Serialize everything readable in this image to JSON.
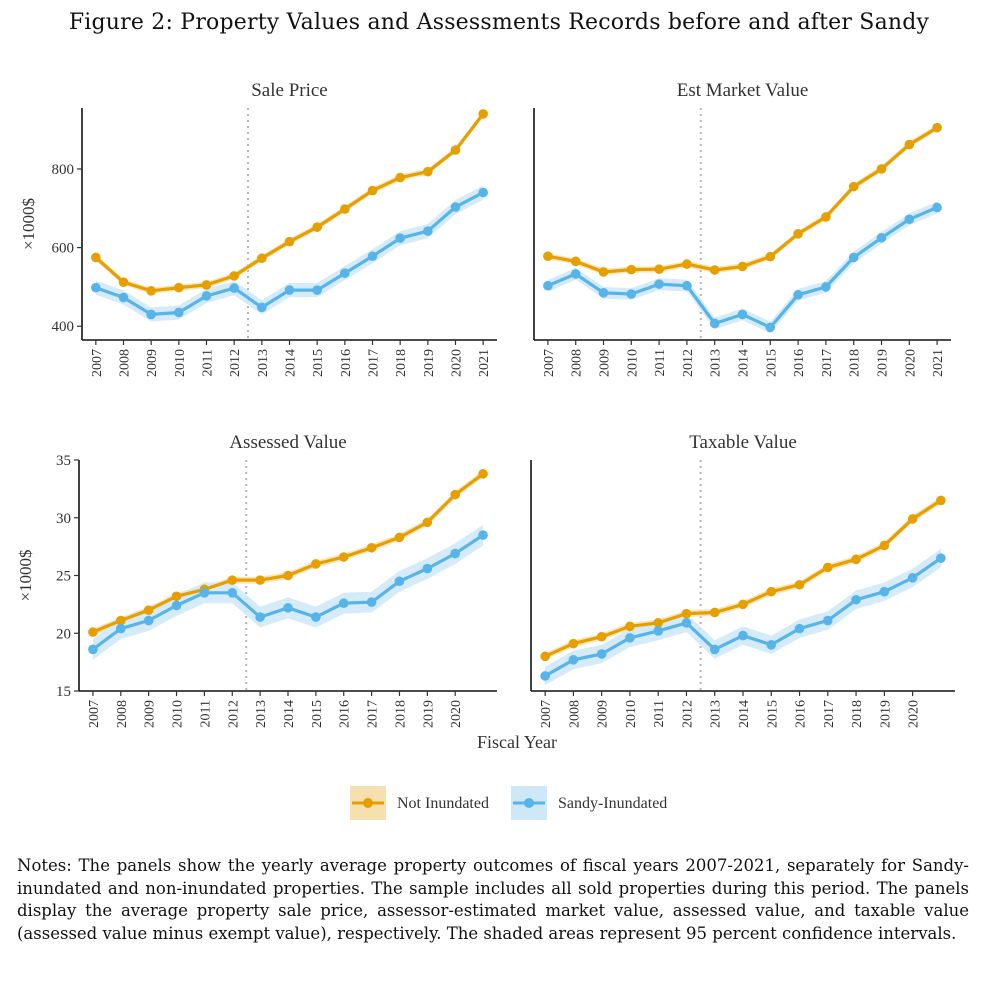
{
  "figure_title": "Figure 2: Property Values and Assessments Records before and after Sandy",
  "x_axis_title": "Fiscal Year",
  "legend": {
    "series": [
      {
        "name": "Not Inundated",
        "color": "#E69F00",
        "band_color": "#F7E0B0"
      },
      {
        "name": "Sandy-Inundated",
        "color": "#56B4E9",
        "band_color": "#CFE8F8"
      }
    ]
  },
  "notes": "Notes: The panels show the yearly average property outcomes of fiscal years 2007-2021, separately for Sandy-inundated and non-inundated properties. The sample includes all sold properties during this period. The panels display the average property sale price, assessor-estimated market value, assessed value, and taxable value (assessed value minus exempt value), respectively. The shaded areas represent 95 percent confidence intervals.",
  "chart_data": [
    {
      "type": "line",
      "title": "Sale Price",
      "ylabel": "×1000$",
      "ylim": [
        365,
        955
      ],
      "yticks": [
        400,
        600,
        800
      ],
      "xlim": [
        2006.5,
        2021.5
      ],
      "xticks": [
        2007,
        2008,
        2009,
        2010,
        2011,
        2012,
        2013,
        2014,
        2015,
        2016,
        2017,
        2018,
        2019,
        2020,
        2021
      ],
      "vline": 2012.5,
      "x": [
        2007,
        2008,
        2009,
        2010,
        2011,
        2012,
        2013,
        2014,
        2015,
        2016,
        2017,
        2018,
        2019,
        2020,
        2021
      ],
      "series": [
        {
          "name": "Not Inundated",
          "values": [
            575,
            512,
            490,
            498,
            505,
            528,
            573,
            615,
            652,
            698,
            745,
            778,
            793,
            848,
            940
          ],
          "ci": 8
        },
        {
          "name": "Sandy-Inundated",
          "values": [
            498,
            473,
            430,
            435,
            477,
            497,
            448,
            492,
            492,
            535,
            578,
            624,
            642,
            703,
            740
          ],
          "ci": 18
        }
      ]
    },
    {
      "type": "line",
      "title": "Est Market Value",
      "ylabel": "",
      "ylim": [
        365,
        955
      ],
      "yticks": [],
      "xlim": [
        2006.5,
        2021.5
      ],
      "xticks": [
        2007,
        2008,
        2009,
        2010,
        2011,
        2012,
        2013,
        2014,
        2015,
        2016,
        2017,
        2018,
        2019,
        2020,
        2021
      ],
      "vline": 2012.5,
      "x": [
        2007,
        2008,
        2009,
        2010,
        2011,
        2012,
        2013,
        2014,
        2015,
        2016,
        2017,
        2018,
        2019,
        2020,
        2021
      ],
      "series": [
        {
          "name": "Not Inundated",
          "values": [
            578,
            565,
            538,
            544,
            545,
            558,
            543,
            552,
            577,
            635,
            678,
            755,
            800,
            862,
            905
          ],
          "ci": 8
        },
        {
          "name": "Sandy-Inundated",
          "values": [
            503,
            533,
            485,
            482,
            507,
            503,
            407,
            430,
            397,
            480,
            500,
            575,
            625,
            672,
            702
          ],
          "ci": 15
        }
      ]
    },
    {
      "type": "line",
      "title": "Assessed Value",
      "ylabel": "×1000$",
      "ylim": [
        15,
        35
      ],
      "yticks": [
        15,
        20,
        25,
        30,
        35
      ],
      "xlim": [
        2006.5,
        2021.5
      ],
      "xticks": [
        2007,
        2008,
        2009,
        2010,
        2011,
        2012,
        2013,
        2014,
        2015,
        2016,
        2017,
        2018,
        2019,
        2020
      ],
      "vline": 2012.5,
      "x": [
        2007,
        2008,
        2009,
        2010,
        2011,
        2012,
        2013,
        2014,
        2015,
        2016,
        2017,
        2018,
        2019,
        2020,
        2021
      ],
      "series": [
        {
          "name": "Not Inundated",
          "values": [
            20.1,
            21.1,
            22.0,
            23.2,
            23.8,
            24.6,
            24.6,
            25.0,
            26.0,
            26.6,
            27.4,
            28.3,
            29.6,
            32.0,
            33.8
          ],
          "ci": 0.3
        },
        {
          "name": "Sandy-Inundated",
          "values": [
            18.6,
            20.4,
            21.1,
            22.4,
            23.5,
            23.5,
            21.4,
            22.2,
            21.4,
            22.6,
            22.7,
            24.5,
            25.6,
            26.9,
            28.5
          ],
          "ci": 0.9
        }
      ]
    },
    {
      "type": "line",
      "title": "Taxable Value",
      "ylabel": "",
      "ylim": [
        15,
        35
      ],
      "yticks": [],
      "xlim": [
        2006.5,
        2021.5
      ],
      "xticks": [
        2007,
        2008,
        2009,
        2010,
        2011,
        2012,
        2013,
        2014,
        2015,
        2016,
        2017,
        2018,
        2019,
        2020
      ],
      "vline": 2012.5,
      "x": [
        2007,
        2008,
        2009,
        2010,
        2011,
        2012,
        2013,
        2014,
        2015,
        2016,
        2017,
        2018,
        2019,
        2020,
        2021
      ],
      "series": [
        {
          "name": "Not Inundated",
          "values": [
            18.0,
            19.1,
            19.7,
            20.6,
            20.9,
            21.7,
            21.8,
            22.5,
            23.6,
            24.2,
            25.7,
            26.4,
            27.6,
            29.9,
            31.5
          ],
          "ci": 0.3
        },
        {
          "name": "Sandy-Inundated",
          "values": [
            16.3,
            17.7,
            18.2,
            19.6,
            20.2,
            20.9,
            18.6,
            19.8,
            19.0,
            20.4,
            21.1,
            22.9,
            23.6,
            24.8,
            26.5
          ],
          "ci": 0.8
        }
      ]
    }
  ]
}
